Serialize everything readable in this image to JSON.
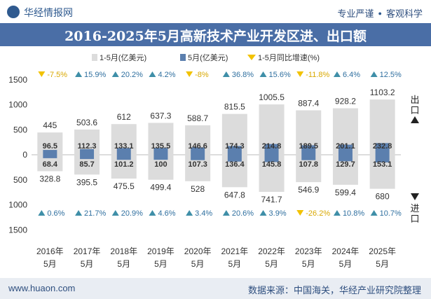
{
  "header": {
    "logo_text": "华经情报网",
    "slogan_left": "专业严谨",
    "slogan_right": "客观科学"
  },
  "footer": {
    "website": "www.huaon.com",
    "source": "数据来源：中国海关，华经产业研究院整理"
  },
  "colors": {
    "title_bg": "#4a6ea6",
    "cum_bar": "#dcdcdc",
    "month_bar": "#5b7fae",
    "up_triangle": "#3f8fa8",
    "down_triangle": "#f2c200"
  },
  "chart_data": {
    "type": "bar",
    "title": "2016-2025年5月高新技术产业开发区进、出口额",
    "legend": [
      "1-5月(亿美元)",
      "5月(亿美元)",
      "1-5月同比增速(%)"
    ],
    "side_labels": {
      "export": "出口",
      "import": "进口"
    },
    "categories": [
      "2016年\n5月",
      "2017年\n5月",
      "2018年\n5月",
      "2019年\n5月",
      "2020年\n5月",
      "2021年\n5月",
      "2022年\n5月",
      "2023年\n5月",
      "2024年\n5月",
      "2025年\n5月"
    ],
    "ylim": [
      -1500,
      1500
    ],
    "yticks": [
      1500,
      1000,
      500,
      0,
      500,
      1000,
      1500
    ],
    "series": [
      {
        "name": "出口 1-5月(亿美元)",
        "values": [
          445,
          503.6,
          612,
          637.3,
          588.7,
          815.5,
          1005.5,
          887.4,
          928.2,
          1103.2
        ]
      },
      {
        "name": "出口 5月(亿美元)",
        "values": [
          96.5,
          112.3,
          133.1,
          135.5,
          146.6,
          174.3,
          214.8,
          189.5,
          201.1,
          232.8
        ]
      },
      {
        "name": "进口 1-5月(亿美元)",
        "values": [
          328.8,
          395.5,
          475.5,
          499.4,
          528,
          647.8,
          741.7,
          546.9,
          599.4,
          680
        ]
      },
      {
        "name": "进口 5月(亿美元)",
        "values": [
          68.4,
          85.7,
          101.2,
          100,
          107.3,
          136.4,
          145.8,
          107.8,
          129.7,
          153.1
        ]
      }
    ],
    "export_growth": [
      "-7.5%",
      "15.9%",
      "20.2%",
      "4.2%",
      "-8%",
      "36.8%",
      "15.6%",
      "-11.8%",
      "6.4%",
      "12.5%"
    ],
    "import_growth": [
      "0.6%",
      "21.7%",
      "20.9%",
      "4.6%",
      "3.4%",
      "20.6%",
      "3.9%",
      "-26.2%",
      "10.8%",
      "10.7%"
    ],
    "export_cum_labels": [
      "445",
      "503.6",
      "612",
      "637.3",
      "588.7",
      "815.5",
      "1005.5",
      "887.4",
      "928.2",
      "1103.2"
    ],
    "export_month_labels": [
      "96.5",
      "112.3",
      "133.1",
      "135.5",
      "146.6",
      "174.3",
      "214.8",
      "189.5",
      "201.1",
      "232.8"
    ],
    "import_cum_labels": [
      "328.8",
      "395.5",
      "475.5",
      "499.4",
      "528",
      "647.8",
      "741.7",
      "546.9",
      "599.4",
      "680"
    ],
    "import_month_labels": [
      "68.4",
      "85.7",
      "101.2",
      "100",
      "107.3",
      "136.4",
      "145.8",
      "107.8",
      "129.7",
      "153.1"
    ]
  }
}
